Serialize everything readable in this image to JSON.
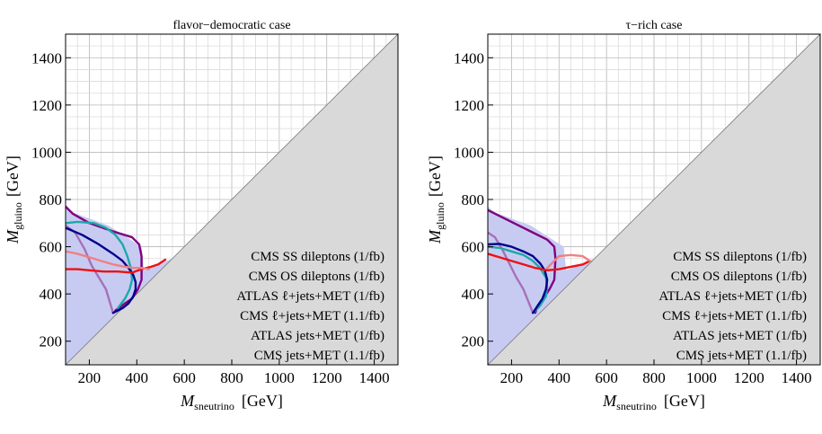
{
  "chart_data": [
    {
      "type": "line",
      "title": "flavor−democratic case",
      "xlabel_main": "M",
      "xlabel_sub": "sneutrino",
      "xlabel_unit": "[GeV]",
      "ylabel_main": "M",
      "ylabel_sub": "gluino",
      "ylabel_unit": "[GeV]",
      "xlim": [
        100,
        1500
      ],
      "ylim": [
        100,
        1500
      ],
      "xticks": [
        "200",
        "400",
        "600",
        "800",
        "1000",
        "1200",
        "1400"
      ],
      "yticks": [
        "200",
        "400",
        "600",
        "800",
        "1000",
        "1200",
        "1400"
      ],
      "grid": true,
      "excluded_region": "M_gluino < M_sneutrino",
      "legend_position": "bottom-right",
      "series": [
        {
          "name": "CMS SS dileptons (1/fb)",
          "color": "#800080",
          "x": [
            100,
            130,
            200,
            300,
            380,
            410,
            420,
            420,
            405,
            380,
            350,
            310
          ],
          "y": [
            770,
            740,
            700,
            665,
            640,
            610,
            560,
            460,
            420,
            380,
            360,
            330
          ]
        },
        {
          "name": "CMS OS dileptons (1/fb)",
          "color": "#a870b8",
          "x": [
            100,
            140,
            180,
            210,
            240,
            270,
            285,
            300
          ],
          "y": [
            690,
            660,
            590,
            520,
            470,
            420,
            370,
            320
          ]
        },
        {
          "name": "ATLAS ℓ+jets+MET (1/fb)",
          "color": "#1aa9a9",
          "x": [
            100,
            150,
            220,
            270,
            310,
            340,
            360,
            375,
            380,
            370,
            350,
            320
          ],
          "y": [
            700,
            705,
            700,
            680,
            650,
            610,
            560,
            510,
            460,
            420,
            380,
            340
          ]
        },
        {
          "name": "CMS ℓ+jets+MET (1.1/fb)",
          "color": "#00008b",
          "x": [
            100,
            170,
            240,
            300,
            340,
            365,
            385,
            395,
            395,
            385,
            365,
            340,
            300
          ],
          "y": [
            680,
            650,
            610,
            570,
            540,
            510,
            480,
            450,
            420,
            390,
            360,
            340,
            320
          ]
        },
        {
          "name": "ATLAS jets+MET (1/fb)",
          "color": "#ee1111",
          "x": [
            100,
            150,
            200,
            260,
            320,
            380,
            420,
            460,
            490,
            520
          ],
          "y": [
            505,
            505,
            500,
            495,
            495,
            490,
            505,
            515,
            525,
            545
          ]
        },
        {
          "name": "CMS jets+MET (1.1/fb)",
          "color": "#f08080",
          "x": [
            100,
            150,
            200,
            250,
            300,
            350,
            390,
            420,
            450
          ],
          "y": [
            580,
            570,
            555,
            540,
            525,
            515,
            510,
            510,
            505
          ]
        }
      ]
    },
    {
      "type": "line",
      "title": "τ−rich case",
      "xlabel_main": "M",
      "xlabel_sub": "sneutrino",
      "xlabel_unit": "[GeV]",
      "ylabel_main": "M",
      "ylabel_sub": "gluino",
      "ylabel_unit": "[GeV]",
      "xlim": [
        100,
        1500
      ],
      "ylim": [
        100,
        1500
      ],
      "xticks": [
        "200",
        "400",
        "600",
        "800",
        "1000",
        "1200",
        "1400"
      ],
      "yticks": [
        "200",
        "400",
        "600",
        "800",
        "1000",
        "1200",
        "1400"
      ],
      "grid": true,
      "excluded_region": "M_gluino < M_sneutrino",
      "legend_position": "bottom-right",
      "series": [
        {
          "name": "CMS SS dileptons (1/fb)",
          "color": "#800080",
          "x": [
            100,
            150,
            230,
            300,
            350,
            380,
            385,
            380,
            360,
            340,
            310,
            300
          ],
          "y": [
            755,
            730,
            690,
            655,
            630,
            600,
            550,
            460,
            420,
            390,
            350,
            320
          ]
        },
        {
          "name": "CMS OS dileptons (1/fb)",
          "color": "#a870b8",
          "x": [
            100,
            130,
            160,
            190,
            220,
            250,
            270,
            290
          ],
          "y": [
            660,
            640,
            590,
            530,
            470,
            420,
            370,
            320
          ]
        },
        {
          "name": "ATLAS ℓ+jets+MET (1/fb)",
          "color": "#1aa9a9",
          "x": [
            100,
            150,
            200,
            250,
            290,
            320,
            345,
            350,
            345,
            320,
            290
          ],
          "y": [
            600,
            595,
            580,
            565,
            540,
            510,
            470,
            430,
            390,
            350,
            320
          ]
        },
        {
          "name": "CMS ℓ+jets+MET (1.1/fb)",
          "color": "#00008b",
          "x": [
            100,
            150,
            200,
            250,
            290,
            320,
            340,
            350,
            345,
            330,
            310,
            290
          ],
          "y": [
            610,
            612,
            600,
            580,
            560,
            530,
            500,
            460,
            420,
            380,
            350,
            320
          ]
        },
        {
          "name": "ATLAS jets+MET (1/fb)",
          "color": "#ee1111",
          "x": [
            100,
            150,
            200,
            250,
            300,
            350,
            400,
            450,
            500,
            530
          ],
          "y": [
            570,
            555,
            540,
            525,
            510,
            500,
            505,
            515,
            525,
            540
          ]
        },
        {
          "name": "CMS jets+MET (1.1/fb)",
          "color": "#f08080",
          "x": [
            350,
            400,
            450,
            500,
            530
          ],
          "y": [
            510,
            560,
            565,
            560,
            540
          ]
        }
      ]
    }
  ]
}
